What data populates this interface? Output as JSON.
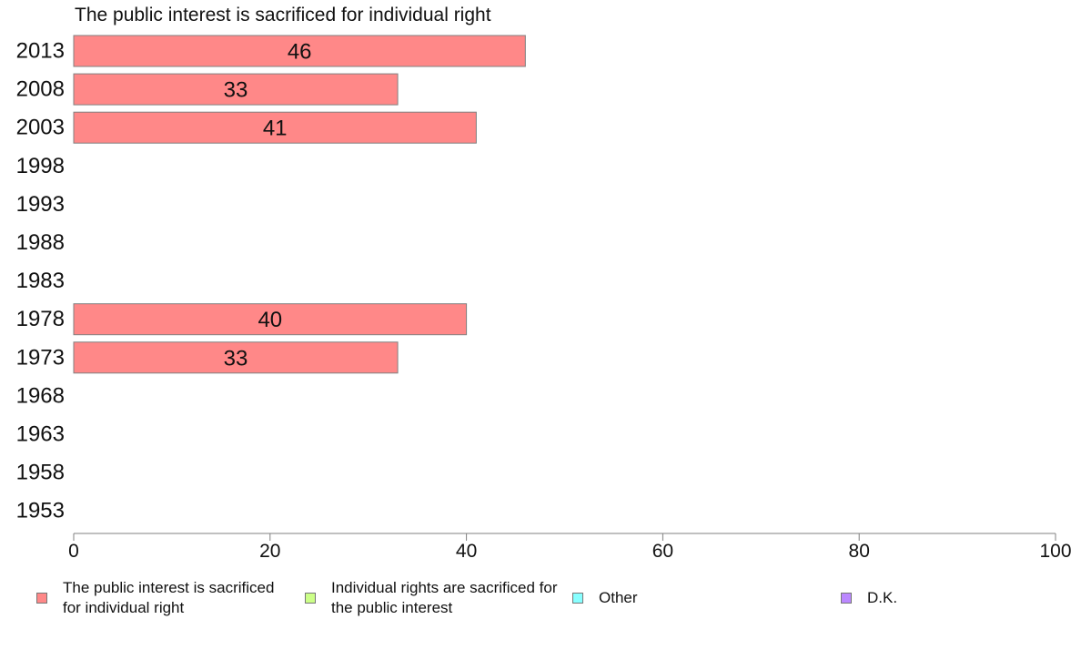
{
  "chart_data": {
    "type": "bar",
    "orientation": "horizontal",
    "title": "The public interest is sacrificed for individual right",
    "categories": [
      "2013",
      "2008",
      "2003",
      "1998",
      "1993",
      "1988",
      "1983",
      "1978",
      "1973",
      "1968",
      "1963",
      "1958",
      "1953"
    ],
    "series": [
      {
        "name": "The public interest is sacrificed for individual right",
        "color": "#ff8888",
        "values": [
          46,
          33,
          41,
          null,
          null,
          null,
          null,
          40,
          33,
          null,
          null,
          null,
          null
        ]
      }
    ],
    "data_labels": [
      "46",
      "33",
      "41",
      null,
      null,
      null,
      null,
      "40",
      "33",
      null,
      null,
      null,
      null
    ],
    "xlim": [
      0,
      100
    ],
    "x_ticks": [
      "0",
      "20",
      "40",
      "60",
      "80",
      "100"
    ],
    "grid": false,
    "legend_position": "bottom",
    "legend": [
      {
        "label": "The public interest is sacrificed for individual right",
        "color": "#ff8888"
      },
      {
        "label": "Individual rights are sacrificed for the public interest",
        "color": "#ccff88"
      },
      {
        "label": "Other",
        "color": "#88ffff"
      },
      {
        "label": "D.K.",
        "color": "#bb88ff"
      }
    ]
  }
}
